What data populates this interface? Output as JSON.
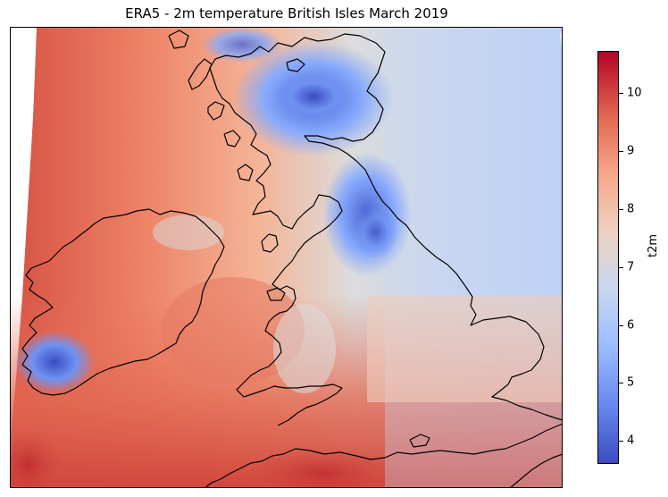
{
  "title": "ERA5 - 2m temperature British Isles March 2019",
  "colorbar": {
    "label": "t2m",
    "ticks": [
      "4",
      "5",
      "6",
      "7",
      "8",
      "9",
      "10"
    ],
    "range": [
      3.6,
      10.8
    ],
    "colormap": "coolwarm",
    "low_color": "#3b4cc0",
    "mid_color": "#dddddd",
    "high_color": "#b40426"
  },
  "map": {
    "projection": "rotated regular grid",
    "features": [
      "coastline"
    ],
    "coastline_color": "#000000"
  }
}
